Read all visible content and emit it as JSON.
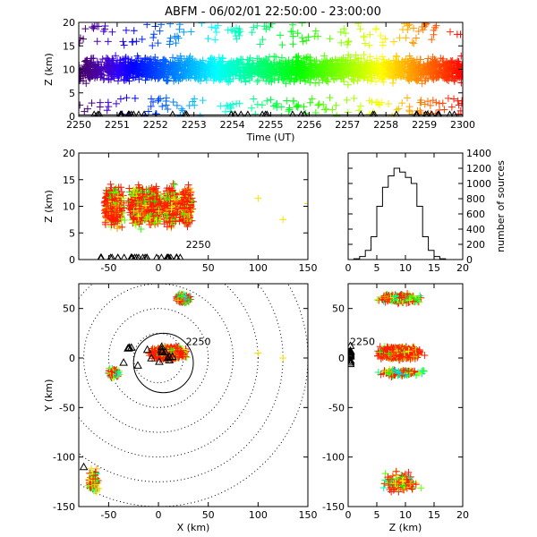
{
  "title": "ABFM - 06/02/01 22:50:00 - 23:00:00",
  "chart_data": [
    {
      "id": "time-height",
      "type": "scatter",
      "xlabel": "Time (UT)",
      "ylabel": "Z (km)",
      "xticks": [
        "2250",
        "2251",
        "2252",
        "2253",
        "2254",
        "2255",
        "2256",
        "2257",
        "2258",
        "2259",
        "2300"
      ],
      "xlim": [
        0,
        10
      ],
      "ylim": [
        0,
        20
      ],
      "yticks": [
        0,
        5,
        10,
        15,
        20
      ],
      "color_scale": "rainbow by time (purple early → red late)",
      "z_band": {
        "low_km": 5,
        "high_km": 15,
        "core_km": 10
      },
      "station_marker": "triangle"
    },
    {
      "id": "x-z",
      "type": "scatter",
      "xlabel": "",
      "ylabel": "Z (km)",
      "xlim": [
        -80,
        150
      ],
      "ylim": [
        0,
        20
      ],
      "xticks": [
        -50,
        0,
        50,
        100,
        150
      ],
      "yticks": [
        0,
        5,
        10,
        15,
        20
      ],
      "annotation": "2250"
    },
    {
      "id": "histogram",
      "type": "bar",
      "xlabel": "",
      "ylabel": "number of sources",
      "xlim": [
        0,
        20
      ],
      "ylim": [
        0,
        1400
      ],
      "xticks": [
        0,
        5,
        10,
        15,
        20
      ],
      "yticks": [
        0,
        200,
        400,
        600,
        800,
        1000,
        1200,
        1400
      ],
      "x": [
        0,
        1,
        2,
        3,
        4,
        5,
        6,
        7,
        8,
        9,
        10,
        11,
        12,
        13,
        14,
        15,
        16,
        17,
        18,
        19,
        20
      ],
      "values": [
        0,
        10,
        40,
        120,
        300,
        700,
        950,
        1100,
        1200,
        1150,
        1080,
        1000,
        700,
        300,
        120,
        40,
        10,
        0,
        0,
        0,
        0
      ]
    },
    {
      "id": "plan-view",
      "type": "scatter",
      "xlabel": "X (km)",
      "ylabel": "Y (km)",
      "xlim": [
        -80,
        150
      ],
      "ylim": [
        -150,
        75
      ],
      "xticks": [
        -50,
        0,
        50,
        100,
        150
      ],
      "yticks": [
        -150,
        -100,
        -50,
        0,
        50
      ],
      "range_rings_km": [
        25,
        50,
        75,
        100,
        125,
        150
      ],
      "annotation": "2250"
    },
    {
      "id": "z-y",
      "type": "scatter",
      "xlabel": "Z (km)",
      "ylabel": "",
      "xlim": [
        0,
        20
      ],
      "ylim": [
        -150,
        75
      ],
      "xticks": [
        0,
        5,
        10,
        15,
        20
      ],
      "yticks": [
        -150,
        -100,
        -50,
        0,
        50
      ],
      "annotation": "2250"
    }
  ]
}
